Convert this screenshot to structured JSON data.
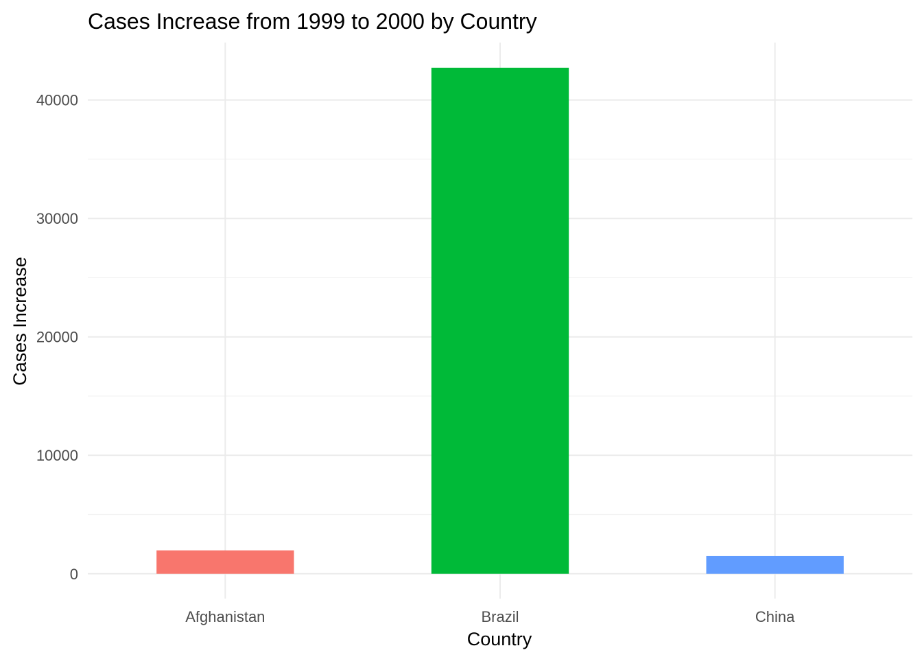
{
  "chart_data": {
    "type": "bar",
    "title": "Cases Increase from 1999 to 2000 by Country",
    "xlabel": "Country",
    "ylabel": "Cases Increase",
    "categories": [
      "Afghanistan",
      "Brazil",
      "China"
    ],
    "values": [
      1972,
      42718,
      1496
    ],
    "colors": [
      "#F8766D",
      "#00BA38",
      "#619CFF"
    ],
    "ylim": [
      -2100,
      44850
    ],
    "yticks": [
      0,
      10000,
      20000,
      30000,
      40000
    ],
    "ytick_labels": [
      "0",
      "10000",
      "20000",
      "30000",
      "40000"
    ],
    "grid": true,
    "legend": "none"
  }
}
